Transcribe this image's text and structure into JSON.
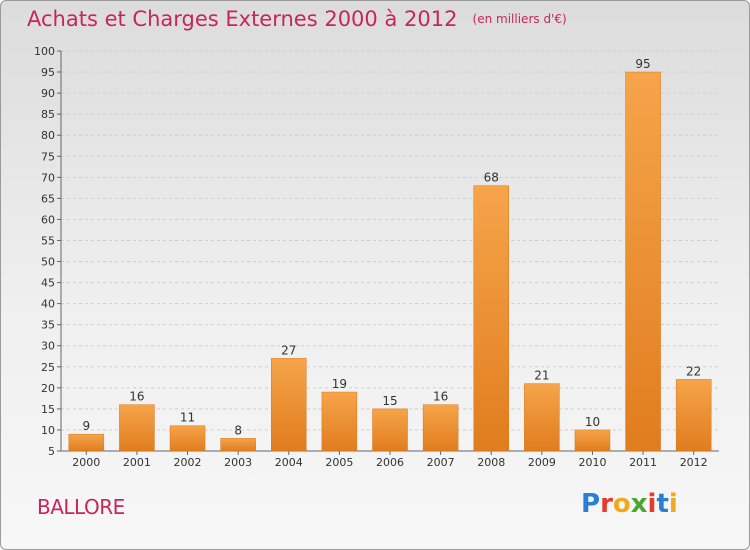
{
  "title": "Achats et Charges Externes 2000 à 2012",
  "unit": "(en milliers d'€)",
  "commune": "BALLORE",
  "logo": {
    "letters": [
      "P",
      "r",
      "o",
      "x",
      "i",
      "t",
      "i"
    ],
    "colors": [
      "#2a7fd4",
      "#e8392d",
      "#f2a81c",
      "#4aa62e",
      "#e8392d",
      "#2a7fd4",
      "#f2a81c"
    ]
  },
  "chart_data": {
    "type": "bar",
    "title": "Achats et Charges Externes 2000 à 2012",
    "categories": [
      "2000",
      "2001",
      "2002",
      "2003",
      "2004",
      "2005",
      "2006",
      "2007",
      "2008",
      "2009",
      "2010",
      "2011",
      "2012"
    ],
    "values": [
      9,
      16,
      11,
      8,
      27,
      19,
      15,
      16,
      68,
      21,
      10,
      95,
      22
    ],
    "ylim": [
      5,
      100
    ],
    "yticks": [
      5,
      10,
      15,
      20,
      25,
      30,
      35,
      40,
      45,
      50,
      55,
      60,
      65,
      70,
      75,
      80,
      85,
      90,
      95,
      100
    ],
    "grid": true,
    "bar_color": "#f0922e"
  }
}
